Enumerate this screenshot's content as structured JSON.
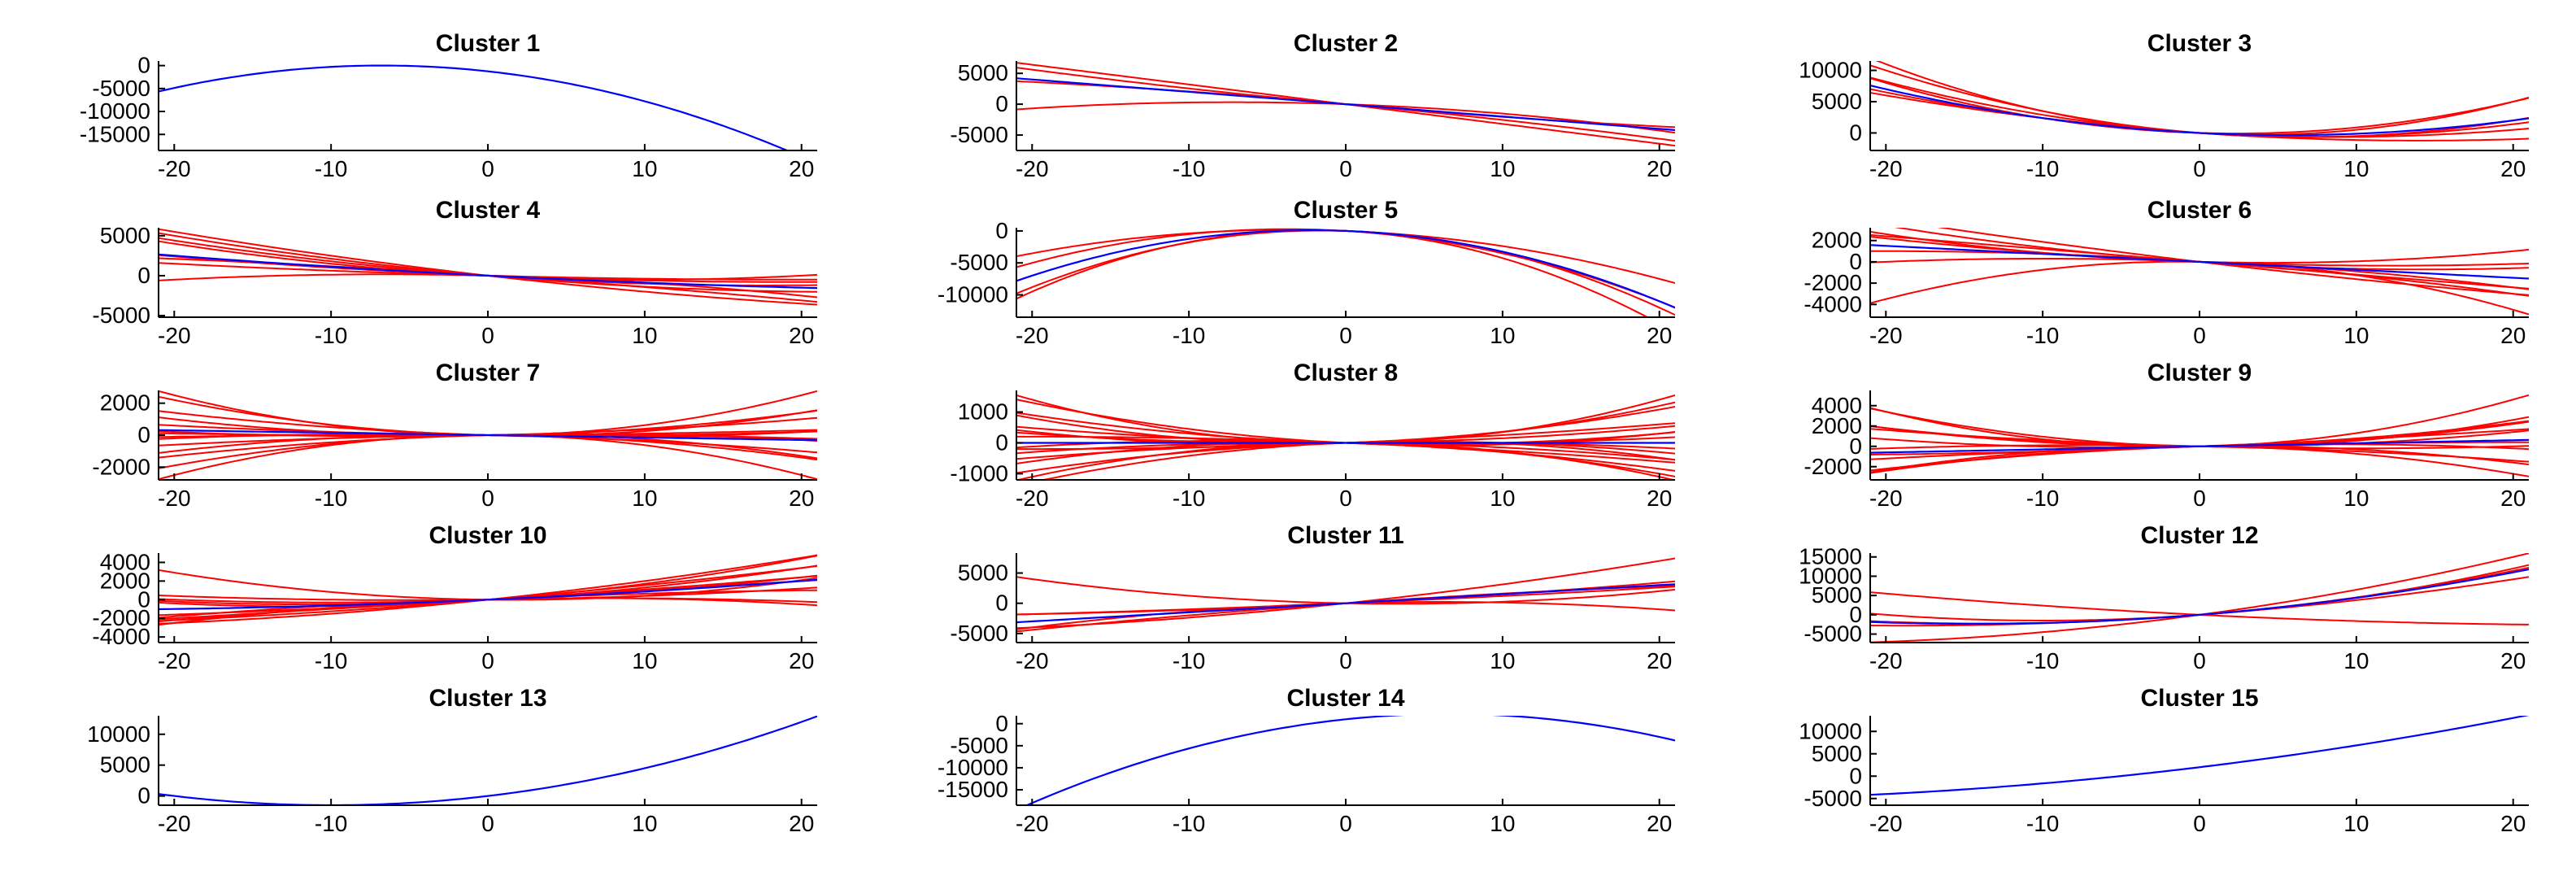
{
  "figure": {
    "layout": "5 rows x 3 columns grid of small line plots"
  },
  "colors": {
    "center_curve": "#0000ff",
    "member_curve": "#ff0000",
    "axes": "#000000"
  },
  "chart_data": [
    {
      "type": "line",
      "title": "Cluster 1",
      "xlim": [
        -21,
        21
      ],
      "ylim": [
        -18500,
        1000
      ],
      "xticks": [
        -20,
        -10,
        0,
        10,
        20
      ],
      "yticks": [
        0,
        -5000,
        -10000,
        -15000
      ],
      "center": {
        "a": -27.8,
        "b": -375,
        "c": -1250
      },
      "members": []
    },
    {
      "type": "line",
      "title": "Cluster 2",
      "xlim": [
        -21,
        21
      ],
      "ylim": [
        -7500,
        7000
      ],
      "xticks": [
        -20,
        -10,
        0,
        10,
        20
      ],
      "yticks": [
        5000,
        0,
        -5000
      ],
      "center": {
        "a": 0,
        "b": -200,
        "c": 0
      },
      "members": [
        {
          "a": 0,
          "b": -320,
          "c": 0
        },
        {
          "a": -6.2,
          "b": -90,
          "c": 0
        },
        {
          "a": -2.5,
          "b": -230,
          "c": 0
        },
        {
          "a": 2.5,
          "b": -230,
          "c": 0
        }
      ]
    },
    {
      "type": "line",
      "title": "Cluster 3",
      "xlim": [
        -21,
        21
      ],
      "ylim": [
        -2800,
        11500
      ],
      "xticks": [
        -20,
        -10,
        0,
        10,
        20
      ],
      "yticks": [
        10000,
        5000,
        0
      ],
      "center": {
        "a": 11.25,
        "b": -125,
        "c": 0
      },
      "members": [
        {
          "a": 20,
          "b": -150,
          "c": 0
        },
        {
          "a": 16.25,
          "b": -75,
          "c": 0
        },
        {
          "a": 6.25,
          "b": -175,
          "c": 0
        },
        {
          "a": 8.75,
          "b": -150,
          "c": 0
        },
        {
          "a": 12,
          "b": -170,
          "c": 0
        },
        {
          "a": 15,
          "b": -200,
          "c": 0
        }
      ]
    },
    {
      "type": "line",
      "title": "Cluster 4",
      "xlim": [
        -21,
        21
      ],
      "ylim": [
        -5200,
        6000
      ],
      "xticks": [
        -20,
        -10,
        0,
        10,
        20
      ],
      "yticks": [
        5000,
        0,
        -5000
      ],
      "center": {
        "a": 1.25,
        "b": -100,
        "c": 0
      },
      "members": [
        {
          "a": 2.5,
          "b": -225,
          "c": 0
        },
        {
          "a": -3.75,
          "b": -50,
          "c": 0
        },
        {
          "a": 3.75,
          "b": -175,
          "c": 0
        },
        {
          "a": 1.25,
          "b": -50,
          "c": 0
        },
        {
          "a": 5,
          "b": -100,
          "c": 0
        },
        {
          "a": -1.25,
          "b": -130,
          "c": 0
        },
        {
          "a": 2,
          "b": -80,
          "c": 0
        },
        {
          "a": 4,
          "b": -140,
          "c": 0
        }
      ]
    },
    {
      "type": "line",
      "title": "Cluster 5",
      "xlim": [
        -21,
        21
      ],
      "ylim": [
        -13500,
        500
      ],
      "xticks": [
        -20,
        -10,
        0,
        10,
        20
      ],
      "yticks": [
        0,
        -5000,
        -10000
      ],
      "center": {
        "a": -22.5,
        "b": -100,
        "c": 0
      },
      "members": [
        {
          "a": -30,
          "b": -125,
          "c": 0
        },
        {
          "a": -13.75,
          "b": -100,
          "c": 0
        },
        {
          "a": -26,
          "b": -80,
          "c": 0
        },
        {
          "a": -20,
          "b": -150,
          "c": 0
        }
      ]
    },
    {
      "type": "line",
      "title": "Cluster 6",
      "xlim": [
        -21,
        21
      ],
      "ylim": [
        -5200,
        3200
      ],
      "xticks": [
        -20,
        -10,
        0,
        10,
        20
      ],
      "yticks": [
        2000,
        0,
        -2000,
        -4000
      ],
      "center": {
        "a": 0,
        "b": -75,
        "c": 0
      },
      "members": [
        {
          "a": 1.25,
          "b": -175,
          "c": 0
        },
        {
          "a": -10,
          "b": -25,
          "c": 0
        },
        {
          "a": 4.5,
          "b": -40,
          "c": 0
        },
        {
          "a": -2.5,
          "b": -100,
          "c": 0
        },
        {
          "a": -3,
          "b": -60,
          "c": 0
        },
        {
          "a": 2.5,
          "b": -60,
          "c": 0
        },
        {
          "a": 0,
          "b": -120,
          "c": 0
        },
        {
          "a": 3.5,
          "b": -100,
          "c": 0
        }
      ]
    },
    {
      "type": "line",
      "title": "Cluster 7",
      "xlim": [
        -21,
        21
      ],
      "ylim": [
        -2800,
        2800
      ],
      "xticks": [
        -20,
        -10,
        0,
        10,
        20
      ],
      "yticks": [
        2000,
        0,
        -2000
      ],
      "center": {
        "a": 0,
        "b": -15,
        "c": 0
      },
      "members": [
        {
          "a": 6.25,
          "b": 0,
          "c": 0
        },
        {
          "a": -6.25,
          "b": 0,
          "c": 0
        },
        {
          "a": 4.5,
          "b": -20,
          "c": 0
        },
        {
          "a": -4,
          "b": 15,
          "c": 0
        },
        {
          "a": 2,
          "b": -30,
          "c": 0
        },
        {
          "a": -2,
          "b": 25,
          "c": 0
        },
        {
          "a": 1,
          "b": -10,
          "c": 0
        },
        {
          "a": -1,
          "b": 10,
          "c": 0
        },
        {
          "a": 1.5,
          "b": 20,
          "c": 0
        },
        {
          "a": -1.5,
          "b": -20,
          "c": 0
        },
        {
          "a": 0.5,
          "b": 5,
          "c": 0
        },
        {
          "a": -0.5,
          "b": -5,
          "c": 0
        },
        {
          "a": 3,
          "b": 10,
          "c": 0
        },
        {
          "a": -3,
          "b": -10,
          "c": 0
        }
      ]
    },
    {
      "type": "line",
      "title": "Cluster 8",
      "xlim": [
        -21,
        21
      ],
      "ylim": [
        -1200,
        1700
      ],
      "xticks": [
        -20,
        -10,
        0,
        10,
        20
      ],
      "yticks": [
        1000,
        0,
        -1000
      ],
      "center": {
        "a": 0,
        "b": 0,
        "c": 0
      },
      "members": [
        {
          "a": 3.5,
          "b": 0,
          "c": 0
        },
        {
          "a": -2.75,
          "b": 0,
          "c": 0
        },
        {
          "a": 2.5,
          "b": 10,
          "c": 0
        },
        {
          "a": -2,
          "b": -10,
          "c": 0
        },
        {
          "a": 1.5,
          "b": -15,
          "c": 0
        },
        {
          "a": -1.5,
          "b": 15,
          "c": 0
        },
        {
          "a": 1,
          "b": 5,
          "c": 0
        },
        {
          "a": -1,
          "b": -5,
          "c": 0
        },
        {
          "a": 0.5,
          "b": 20,
          "c": 0
        },
        {
          "a": -0.5,
          "b": -20,
          "c": 0
        },
        {
          "a": 2,
          "b": -25,
          "c": 0
        },
        {
          "a": -2.2,
          "b": 20,
          "c": 0
        },
        {
          "a": 0.8,
          "b": -8,
          "c": 0
        },
        {
          "a": -0.8,
          "b": 8,
          "c": 0
        },
        {
          "a": 1.8,
          "b": 18,
          "c": 0
        },
        {
          "a": -1.2,
          "b": -18,
          "c": 0
        }
      ]
    },
    {
      "type": "line",
      "title": "Cluster 9",
      "xlim": [
        -21,
        21
      ],
      "ylim": [
        -3300,
        5500
      ],
      "xticks": [
        -20,
        -10,
        0,
        10,
        20
      ],
      "yticks": [
        4000,
        2000,
        0,
        -2000
      ],
      "center": {
        "a": 0,
        "b": 30,
        "c": 0
      },
      "members": [
        {
          "a": 10,
          "b": 30,
          "c": 0
        },
        {
          "a": 7.5,
          "b": -20,
          "c": 0
        },
        {
          "a": -5,
          "b": 20,
          "c": 0
        },
        {
          "a": -6.25,
          "b": -10,
          "c": 0
        },
        {
          "a": 3.75,
          "b": 40,
          "c": 0
        },
        {
          "a": -3,
          "b": 50,
          "c": 0
        },
        {
          "a": 2,
          "b": -40,
          "c": 0
        },
        {
          "a": -2,
          "b": -30,
          "c": 0
        },
        {
          "a": 5,
          "b": 10,
          "c": 0
        },
        {
          "a": 1,
          "b": 60,
          "c": 0
        },
        {
          "a": -1,
          "b": 40,
          "c": 0
        },
        {
          "a": 4,
          "b": -10,
          "c": 0
        }
      ]
    },
    {
      "type": "line",
      "title": "Cluster 10",
      "xlim": [
        -21,
        21
      ],
      "ylim": [
        -4600,
        5000
      ],
      "xticks": [
        -20,
        -10,
        0,
        10,
        20
      ],
      "yticks": [
        4000,
        2000,
        0,
        -2000,
        -4000
      ],
      "center": {
        "a": 1.25,
        "b": 75,
        "c": 0
      },
      "members": [
        {
          "a": 2.5,
          "b": 175,
          "c": 0
        },
        {
          "a": 5,
          "b": 120,
          "c": 0
        },
        {
          "a": -3.75,
          "b": 50,
          "c": 0
        },
        {
          "a": 6.25,
          "b": -20,
          "c": 0
        },
        {
          "a": 1,
          "b": 100,
          "c": 0
        },
        {
          "a": 0,
          "b": 100,
          "c": 0
        },
        {
          "a": 3,
          "b": 60,
          "c": 0
        },
        {
          "a": -1.5,
          "b": 80,
          "c": 0
        },
        {
          "a": 2,
          "b": 20,
          "c": 0
        },
        {
          "a": 4,
          "b": 90,
          "c": 0
        },
        {
          "a": -2.5,
          "b": 40,
          "c": 0
        },
        {
          "a": 1.5,
          "b": 140,
          "c": 0
        }
      ]
    },
    {
      "type": "line",
      "title": "Cluster 11",
      "xlim": [
        -21,
        21
      ],
      "ylim": [
        -6500,
        8300
      ],
      "xticks": [
        -20,
        -10,
        0,
        10,
        20
      ],
      "yticks": [
        5000,
        0,
        -5000
      ],
      "center": {
        "a": 0,
        "b": 150,
        "c": 0
      },
      "members": [
        {
          "a": 3.75,
          "b": 275,
          "c": 0
        },
        {
          "a": 7.5,
          "b": -50,
          "c": 0
        },
        {
          "a": -6.25,
          "b": 75,
          "c": 0
        },
        {
          "a": 2,
          "b": 130,
          "c": 0
        },
        {
          "a": -2,
          "b": 180,
          "c": 0
        },
        {
          "a": 1,
          "b": 110,
          "c": 0
        }
      ]
    },
    {
      "type": "line",
      "title": "Cluster 12",
      "xlim": [
        -21,
        21
      ],
      "ylim": [
        -7200,
        16000
      ],
      "xticks": [
        -20,
        -10,
        0,
        10,
        20
      ],
      "yticks": [
        15000,
        10000,
        5000,
        0,
        -5000
      ],
      "center": {
        "a": 11.25,
        "b": 325,
        "c": 0
      },
      "members": [
        {
          "a": 10,
          "b": 550,
          "c": 0
        },
        {
          "a": 3.75,
          "b": -200,
          "c": 0
        },
        {
          "a": 15,
          "b": 300,
          "c": 0
        },
        {
          "a": 12,
          "b": 330,
          "c": 0
        },
        {
          "a": 8,
          "b": 300,
          "c": 0
        }
      ]
    },
    {
      "type": "line",
      "title": "Cluster 13",
      "xlim": [
        -21,
        21
      ],
      "ylim": [
        -1500,
        13000
      ],
      "xticks": [
        -20,
        -10,
        0,
        10,
        20
      ],
      "yticks": [
        10000,
        5000,
        0
      ],
      "center": {
        "a": 15,
        "b": 300,
        "c": 0
      },
      "members": []
    },
    {
      "type": "line",
      "title": "Cluster 14",
      "xlim": [
        -21,
        21
      ],
      "ylim": [
        -18500,
        1800
      ],
      "xticks": [
        -20,
        -10,
        0,
        10,
        20
      ],
      "yticks": [
        0,
        -5000,
        -10000,
        -15000
      ],
      "center": {
        "a": -28.75,
        "b": 375,
        "c": 1000
      },
      "members": []
    },
    {
      "type": "line",
      "title": "Cluster 15",
      "xlim": [
        -21,
        21
      ],
      "ylim": [
        -6500,
        13500
      ],
      "xticks": [
        -20,
        -10,
        0,
        10,
        20
      ],
      "yticks": [
        10000,
        5000,
        0,
        -5000
      ],
      "center": {
        "a": 6.25,
        "b": 425,
        "c": 2000
      },
      "members": []
    }
  ]
}
